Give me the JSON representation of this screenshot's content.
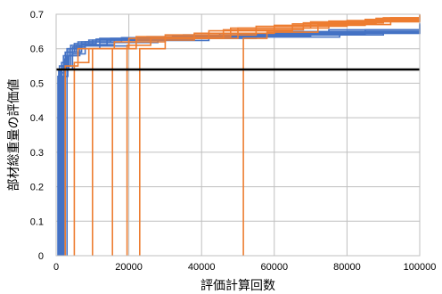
{
  "chart_data": {
    "type": "line",
    "title": "",
    "xlabel": "評価計算回数",
    "ylabel": "部材総重量の評価値",
    "xlim": [
      0,
      100000
    ],
    "ylim": [
      0,
      0.7
    ],
    "x_ticks": [
      0,
      20000,
      40000,
      60000,
      80000,
      100000
    ],
    "y_ticks": [
      0,
      0.1,
      0.2,
      0.3,
      0.4,
      0.5,
      0.6,
      0.7
    ],
    "x_tick_labels": [
      "0",
      "20000",
      "40000",
      "60000",
      "80000",
      "100000"
    ],
    "y_tick_labels": [
      "0",
      "0.1",
      "0.2",
      "0.3",
      "0.4",
      "0.5",
      "0.6",
      "0.7"
    ],
    "grid": true,
    "legend": "none",
    "colors": {
      "blue": "#4472c4",
      "orange": "#ed7d31",
      "reference": "#000000",
      "grid": "#bfbfbf"
    },
    "reference_line": {
      "y": 0.54,
      "color": "#000000"
    },
    "series": [
      {
        "color": "#4472c4",
        "points": [
          [
            500,
            0
          ],
          [
            500,
            0.52
          ],
          [
            1500,
            0.56
          ],
          [
            3000,
            0.6
          ],
          [
            6000,
            0.62
          ],
          [
            12000,
            0.63
          ],
          [
            25000,
            0.635
          ],
          [
            45000,
            0.64
          ],
          [
            70000,
            0.645
          ],
          [
            100000,
            0.65
          ]
        ]
      },
      {
        "color": "#4472c4",
        "points": [
          [
            700,
            0
          ],
          [
            700,
            0.54
          ],
          [
            2000,
            0.58
          ],
          [
            4000,
            0.61
          ],
          [
            9000,
            0.625
          ],
          [
            20000,
            0.63
          ],
          [
            40000,
            0.638
          ],
          [
            65000,
            0.645
          ],
          [
            100000,
            0.655
          ]
        ]
      },
      {
        "color": "#4472c4",
        "points": [
          [
            900,
            0
          ],
          [
            900,
            0.55
          ],
          [
            2500,
            0.59
          ],
          [
            5000,
            0.615
          ],
          [
            11000,
            0.628
          ],
          [
            30000,
            0.635
          ],
          [
            55000,
            0.642
          ],
          [
            80000,
            0.65
          ],
          [
            100000,
            0.66
          ]
        ]
      },
      {
        "color": "#4472c4",
        "points": [
          [
            1100,
            0
          ],
          [
            1100,
            0.53
          ],
          [
            2200,
            0.57
          ],
          [
            3500,
            0.6
          ],
          [
            7000,
            0.62
          ],
          [
            15000,
            0.63
          ],
          [
            35000,
            0.64
          ],
          [
            60000,
            0.65
          ],
          [
            100000,
            0.662
          ]
        ]
      },
      {
        "color": "#4472c4",
        "points": [
          [
            1300,
            0
          ],
          [
            1300,
            0.54
          ],
          [
            2800,
            0.58
          ],
          [
            4500,
            0.605
          ],
          [
            8000,
            0.62
          ],
          [
            18000,
            0.632
          ],
          [
            45000,
            0.645
          ],
          [
            75000,
            0.655
          ],
          [
            100000,
            0.668
          ]
        ]
      },
      {
        "color": "#4472c4",
        "points": [
          [
            1600,
            0
          ],
          [
            1600,
            0.55
          ],
          [
            3000,
            0.59
          ],
          [
            5500,
            0.61
          ],
          [
            10000,
            0.625
          ],
          [
            22000,
            0.633
          ],
          [
            50000,
            0.643
          ],
          [
            85000,
            0.655
          ],
          [
            100000,
            0.672
          ]
        ]
      },
      {
        "color": "#4472c4",
        "points": [
          [
            1800,
            0
          ],
          [
            1800,
            0.52
          ],
          [
            3200,
            0.58
          ],
          [
            6000,
            0.6
          ],
          [
            12000,
            0.618
          ],
          [
            28000,
            0.63
          ],
          [
            55000,
            0.64
          ],
          [
            90000,
            0.648
          ],
          [
            100000,
            0.66
          ]
        ]
      },
      {
        "color": "#4472c4",
        "points": [
          [
            2100,
            0
          ],
          [
            2100,
            0.54
          ],
          [
            3500,
            0.58
          ],
          [
            6500,
            0.61
          ],
          [
            14000,
            0.625
          ],
          [
            32000,
            0.636
          ],
          [
            62000,
            0.647
          ],
          [
            100000,
            0.675
          ]
        ]
      },
      {
        "color": "#4472c4",
        "points": [
          [
            2500,
            0
          ],
          [
            2500,
            0.55
          ],
          [
            4000,
            0.59
          ],
          [
            7000,
            0.612
          ],
          [
            16000,
            0.627
          ],
          [
            38000,
            0.637
          ],
          [
            70000,
            0.648
          ],
          [
            100000,
            0.67
          ]
        ]
      },
      {
        "color": "#4472c4",
        "points": [
          [
            3000,
            0
          ],
          [
            3000,
            0.54
          ],
          [
            4500,
            0.585
          ],
          [
            8000,
            0.608
          ],
          [
            20000,
            0.624
          ],
          [
            42000,
            0.634
          ],
          [
            78000,
            0.645
          ],
          [
            100000,
            0.665
          ]
        ]
      },
      {
        "color": "#ed7d31",
        "points": [
          [
            2500,
            0
          ],
          [
            2500,
            0.55
          ],
          [
            6000,
            0.6
          ],
          [
            20000,
            0.63
          ],
          [
            50000,
            0.66
          ],
          [
            75000,
            0.68
          ],
          [
            100000,
            0.695
          ]
        ]
      },
      {
        "color": "#ed7d31",
        "points": [
          [
            5000,
            0
          ],
          [
            5000,
            0.56
          ],
          [
            9000,
            0.6
          ],
          [
            22000,
            0.635
          ],
          [
            48000,
            0.66
          ],
          [
            70000,
            0.678
          ],
          [
            100000,
            0.69
          ]
        ]
      },
      {
        "color": "#ed7d31",
        "points": [
          [
            10000,
            0
          ],
          [
            10000,
            0.6
          ],
          [
            16000,
            0.62
          ],
          [
            30000,
            0.64
          ],
          [
            55000,
            0.665
          ],
          [
            80000,
            0.682
          ],
          [
            100000,
            0.698
          ]
        ]
      },
      {
        "color": "#ed7d31",
        "points": [
          [
            15500,
            0
          ],
          [
            15500,
            0.6
          ],
          [
            22000,
            0.625
          ],
          [
            38000,
            0.645
          ],
          [
            60000,
            0.668
          ],
          [
            85000,
            0.685
          ],
          [
            100000,
            0.692
          ]
        ]
      },
      {
        "color": "#ed7d31",
        "points": [
          [
            19500,
            0
          ],
          [
            19500,
            0.61
          ],
          [
            26000,
            0.63
          ],
          [
            42000,
            0.652
          ],
          [
            65000,
            0.672
          ],
          [
            88000,
            0.688
          ],
          [
            100000,
            0.7
          ]
        ]
      },
      {
        "color": "#ed7d31",
        "points": [
          [
            23000,
            0
          ],
          [
            23000,
            0.6
          ],
          [
            30000,
            0.63
          ],
          [
            46000,
            0.655
          ],
          [
            68000,
            0.675
          ],
          [
            90000,
            0.69
          ],
          [
            100000,
            0.694
          ]
        ]
      },
      {
        "color": "#ed7d31",
        "points": [
          [
            51500,
            0
          ],
          [
            51500,
            0.63
          ],
          [
            58000,
            0.648
          ],
          [
            72000,
            0.67
          ],
          [
            92000,
            0.69
          ],
          [
            100000,
            0.697
          ]
        ]
      }
    ]
  }
}
